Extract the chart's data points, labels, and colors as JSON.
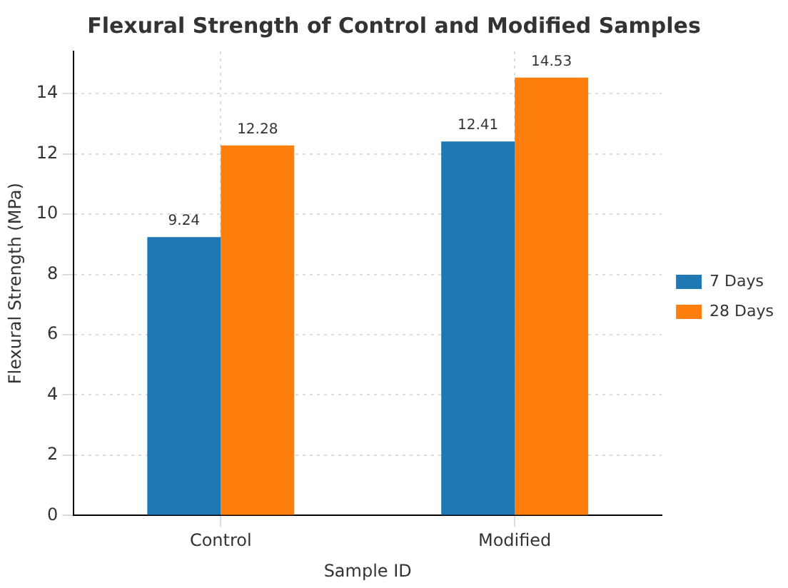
{
  "chart_data": {
    "type": "bar",
    "title": "Flexural Strength of Control and Modified Samples",
    "xlabel": "Sample ID",
    "ylabel": "Flexural Strength (MPa)",
    "categories": [
      "Control",
      "Modified"
    ],
    "series": [
      {
        "name": "7 Days",
        "color": "#1f77b4",
        "values": [
          9.24,
          12.41
        ]
      },
      {
        "name": "28 Days",
        "color": "#ff7f0e",
        "values": [
          12.28,
          14.53
        ]
      }
    ],
    "ylim": [
      0,
      15.4
    ],
    "yticks": [
      0,
      2,
      4,
      6,
      8,
      10,
      12,
      14
    ],
    "grid": true,
    "legend": "right",
    "data_labels": true
  }
}
